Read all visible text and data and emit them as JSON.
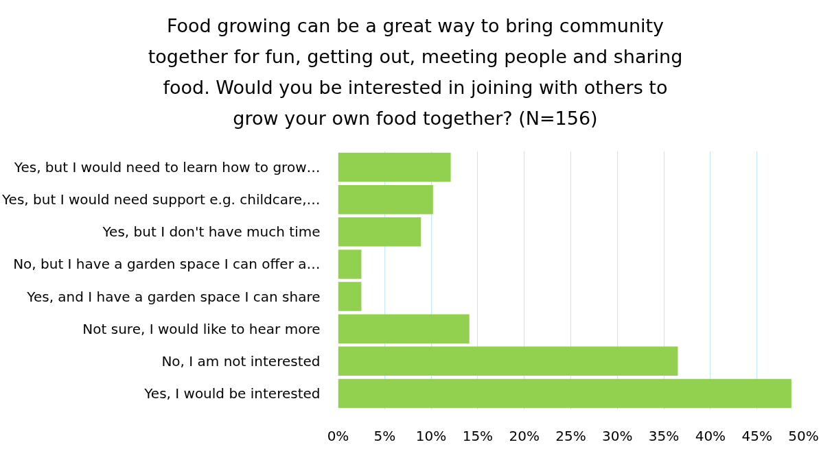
{
  "chart_data": {
    "type": "bar",
    "orientation": "horizontal",
    "title": "Food growing can be a great way to bring community together for fun, getting out, meeting people and sharing food. Would you be interested in joining with others to grow your own food together? (N=156)",
    "categories": [
      "Yes, but I would need to learn how to grow…",
      "Yes, but I would need support e.g. childcare,…",
      "Yes, but I don't have much time",
      "No, but I have a garden space I can offer a…",
      "Yes, and I have a garden space I can share",
      "Not sure, I would like to hear more",
      "No, I am not interested",
      "Yes, I would be interested"
    ],
    "values": [
      12.1,
      10.2,
      8.9,
      2.5,
      2.5,
      14.1,
      36.5,
      48.7
    ],
    "color": "#92d050",
    "xlim": [
      0,
      50
    ],
    "xticks": [
      {
        "value": 0,
        "label": "0%"
      },
      {
        "value": 5,
        "label": "5%"
      },
      {
        "value": 10,
        "label": "10%"
      },
      {
        "value": 15,
        "label": "15%"
      },
      {
        "value": 20,
        "label": "20%"
      },
      {
        "value": 25,
        "label": "25%"
      },
      {
        "value": 30,
        "label": "30%"
      },
      {
        "value": 35,
        "label": "35%"
      },
      {
        "value": 40,
        "label": "40%"
      },
      {
        "value": 45,
        "label": "45%"
      },
      {
        "value": 50,
        "label": "50%"
      }
    ],
    "grid": "x"
  }
}
